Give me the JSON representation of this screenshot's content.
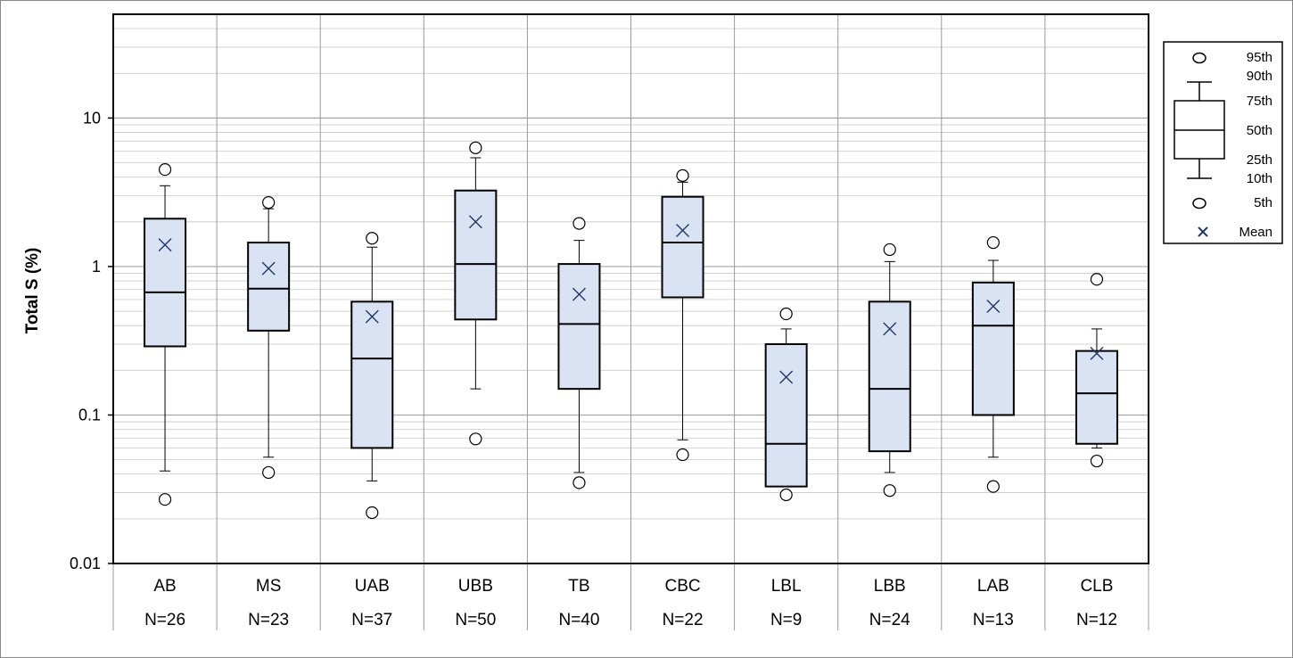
{
  "chart_data": {
    "type": "box",
    "ylabel": "Total S (%)",
    "yscale": "log",
    "ylim": [
      0.01,
      50
    ],
    "yticks": [
      {
        "value": 0.01,
        "label": "0.01"
      },
      {
        "value": 0.1,
        "label": "0.1"
      },
      {
        "value": 1,
        "label": "1"
      },
      {
        "value": 10,
        "label": "10"
      }
    ],
    "grid": true,
    "legend_position": "right",
    "colors": {
      "box_fill": "#dae3f3",
      "stroke": "#000000",
      "mean_marker": "#1f3864",
      "grid": "#c8c8c8"
    },
    "categories": [
      "AB",
      "MS",
      "UAB",
      "UBB",
      "TB",
      "CBC",
      "LBL",
      "LBB",
      "LAB",
      "CLB"
    ],
    "counts": [
      "N=26",
      "N=23",
      "N=37",
      "N=50",
      "N=40",
      "N=22",
      "N=9",
      "N=24",
      "N=13",
      "N=12"
    ],
    "boxes": [
      {
        "p5": 0.027,
        "p10": 0.042,
        "p25": 0.29,
        "p50": 0.67,
        "p75": 2.1,
        "p90": 3.5,
        "p95": 4.5,
        "mean": 1.4
      },
      {
        "p5": 0.041,
        "p10": 0.052,
        "p25": 0.37,
        "p50": 0.71,
        "p75": 1.45,
        "p90": 2.45,
        "p95": 2.7,
        "mean": 0.97
      },
      {
        "p5": 0.022,
        "p10": 0.036,
        "p25": 0.06,
        "p50": 0.24,
        "p75": 0.58,
        "p90": 1.35,
        "p95": 1.55,
        "mean": 0.46
      },
      {
        "p5": 0.069,
        "p10": 0.15,
        "p25": 0.44,
        "p50": 1.04,
        "p75": 3.25,
        "p90": 5.4,
        "p95": 6.3,
        "mean": 2.0
      },
      {
        "p5": 0.035,
        "p10": 0.041,
        "p25": 0.15,
        "p50": 0.41,
        "p75": 1.04,
        "p90": 1.5,
        "p95": 1.95,
        "mean": 0.65
      },
      {
        "p5": 0.054,
        "p10": 0.068,
        "p25": 0.62,
        "p50": 1.45,
        "p75": 2.95,
        "p90": 3.7,
        "p95": 4.1,
        "mean": 1.75
      },
      {
        "p5": 0.029,
        "p10": 0.033,
        "p25": 0.033,
        "p50": 0.064,
        "p75": 0.3,
        "p90": 0.38,
        "p95": 0.48,
        "mean": 0.18
      },
      {
        "p5": 0.031,
        "p10": 0.041,
        "p25": 0.057,
        "p50": 0.15,
        "p75": 0.58,
        "p90": 1.08,
        "p95": 1.3,
        "mean": 0.38
      },
      {
        "p5": 0.033,
        "p10": 0.052,
        "p25": 0.1,
        "p50": 0.4,
        "p75": 0.78,
        "p90": 1.1,
        "p95": 1.45,
        "mean": 0.54
      },
      {
        "p5": 0.049,
        "p10": 0.06,
        "p25": 0.064,
        "p50": 0.14,
        "p75": 0.27,
        "p90": 0.38,
        "p95": 0.82,
        "mean": 0.26
      }
    ],
    "legend": {
      "p95": "95th",
      "p90": "90th",
      "p75": "75th",
      "p50": "50th",
      "p25": "25th",
      "p10": "10th",
      "p5": "5th",
      "mean": "Mean"
    }
  }
}
